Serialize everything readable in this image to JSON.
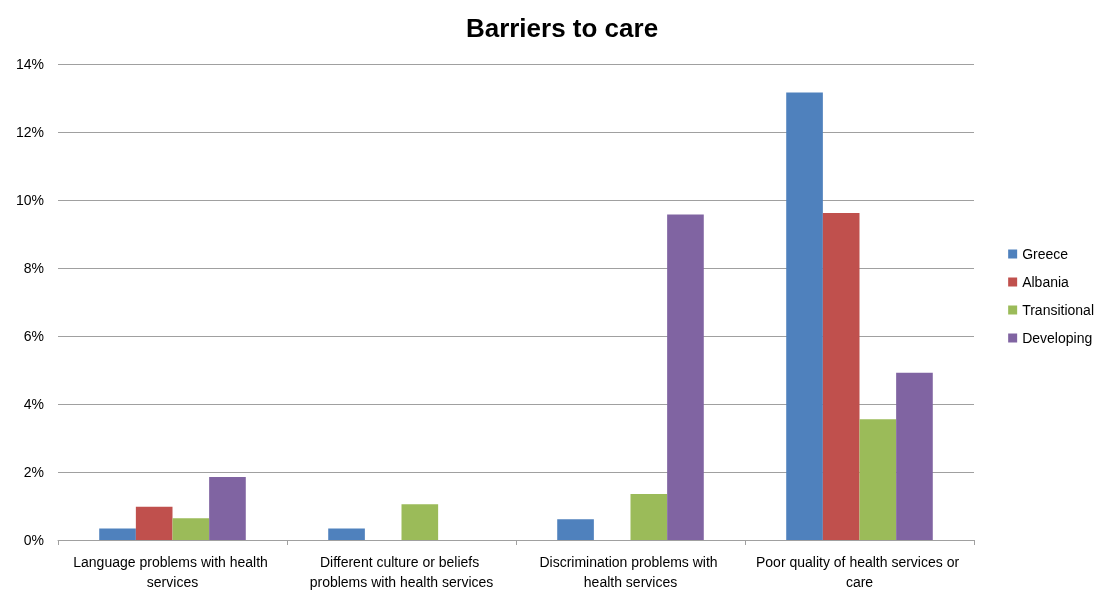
{
  "chart_data": {
    "type": "bar",
    "title": "Barriers to care",
    "categories": [
      "Language problems with health services",
      "Different culture or beliefs problems with health services",
      "Discrimination problems with health services",
      "Poor quality of health services or care"
    ],
    "series": [
      {
        "name": "Greece",
        "color": "#4f81bd",
        "values": [
          0.34,
          0.34,
          0.61,
          13.16
        ]
      },
      {
        "name": "Albania",
        "color": "#c0504d",
        "values": [
          0.98,
          null,
          null,
          9.62
        ]
      },
      {
        "name": "Transitional",
        "color": "#9bbb59",
        "values": [
          0.64,
          1.05,
          1.35,
          3.55
        ]
      },
      {
        "name": "Developing",
        "color": "#8064a2",
        "values": [
          1.85,
          null,
          9.57,
          4.92
        ]
      }
    ],
    "ylim": [
      0,
      14
    ],
    "yticks": [
      {
        "value": 0,
        "label": "0%"
      },
      {
        "value": 2,
        "label": "2%"
      },
      {
        "value": 4,
        "label": "4%"
      },
      {
        "value": 6,
        "label": "6%"
      },
      {
        "value": 8,
        "label": "8%"
      },
      {
        "value": 10,
        "label": "10%"
      },
      {
        "value": 12,
        "label": "12%"
      },
      {
        "value": 14,
        "label": "14%"
      }
    ],
    "grid": "y",
    "legend": "right"
  }
}
